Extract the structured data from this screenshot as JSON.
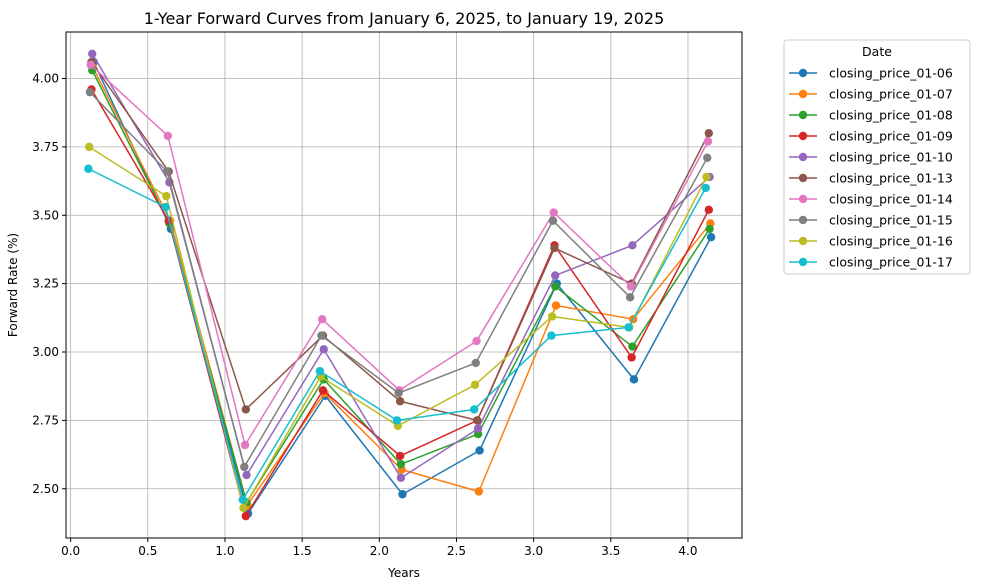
{
  "chart_data": {
    "type": "line",
    "title": "1-Year Forward Curves from January 6, 2025, to January 19, 2025",
    "xlabel": "Years",
    "ylabel": "Forward Rate (%)",
    "xlim": [
      -0.03,
      4.35
    ],
    "ylim": [
      2.32,
      4.17
    ],
    "xticks": [
      0.0,
      0.5,
      1.0,
      1.5,
      2.0,
      2.5,
      3.0,
      3.5,
      4.0
    ],
    "xtick_labels": [
      "0.0",
      "0.5",
      "1.0",
      "1.5",
      "2.0",
      "2.5",
      "3.0",
      "3.5",
      "4.0"
    ],
    "yticks": [
      2.5,
      2.75,
      3.0,
      3.25,
      3.5,
      3.75,
      4.0
    ],
    "ytick_labels": [
      "2.50",
      "2.75",
      "3.00",
      "3.25",
      "3.50",
      "3.75",
      "4.00"
    ],
    "grid": true,
    "legend": {
      "title": "Date",
      "placement": "outside-right"
    },
    "series": [
      {
        "name": "closing_price_01-06",
        "color": "#1f77b4",
        "x": [
          0.15,
          0.65,
          1.15,
          1.65,
          2.15,
          2.65,
          3.15,
          3.65,
          4.15
        ],
        "y": [
          4.06,
          3.45,
          2.41,
          2.84,
          2.48,
          2.64,
          3.25,
          2.9,
          3.42
        ]
      },
      {
        "name": "closing_price_01-07",
        "color": "#ff7f0e",
        "x": [
          0.145,
          0.645,
          1.145,
          1.645,
          2.145,
          2.645,
          3.145,
          3.645,
          4.145
        ],
        "y": [
          4.04,
          3.48,
          2.44,
          2.85,
          2.57,
          2.49,
          3.17,
          3.12,
          3.47
        ]
      },
      {
        "name": "closing_price_01-08",
        "color": "#2ca02c",
        "x": [
          0.14,
          0.64,
          1.14,
          1.64,
          2.14,
          2.64,
          3.14,
          3.64,
          4.14
        ],
        "y": [
          4.03,
          3.47,
          2.45,
          2.9,
          2.59,
          2.7,
          3.24,
          3.02,
          3.45
        ]
      },
      {
        "name": "closing_price_01-09",
        "color": "#d62728",
        "x": [
          0.135,
          0.635,
          1.135,
          1.635,
          2.135,
          2.635,
          3.135,
          3.635,
          4.135
        ],
        "y": [
          3.96,
          3.48,
          2.4,
          2.86,
          2.62,
          2.75,
          3.39,
          2.98,
          3.52
        ]
      },
      {
        "name": "closing_price_01-10",
        "color": "#9467bd",
        "x": [
          0.14,
          0.64,
          1.14,
          1.64,
          2.14,
          2.64,
          3.14,
          3.64,
          4.14
        ],
        "y": [
          4.09,
          3.62,
          2.55,
          3.01,
          2.54,
          2.72,
          3.28,
          3.39,
          3.64
        ]
      },
      {
        "name": "closing_price_01-13",
        "color": "#8c564b",
        "x": [
          0.135,
          0.635,
          1.135,
          1.635,
          2.135,
          2.635,
          3.135,
          3.635,
          4.135
        ],
        "y": [
          4.06,
          3.66,
          2.79,
          3.06,
          2.82,
          2.75,
          3.38,
          3.25,
          3.8
        ]
      },
      {
        "name": "closing_price_01-14",
        "color": "#e377c2",
        "x": [
          0.13,
          0.63,
          1.13,
          1.63,
          2.13,
          2.63,
          3.13,
          3.63,
          4.13
        ],
        "y": [
          4.05,
          3.79,
          2.66,
          3.12,
          2.86,
          3.04,
          3.51,
          3.24,
          3.77
        ]
      },
      {
        "name": "closing_price_01-15",
        "color": "#7f7f7f",
        "x": [
          0.125,
          0.625,
          1.125,
          1.625,
          2.125,
          2.625,
          3.125,
          3.625,
          4.125
        ],
        "y": [
          3.95,
          3.66,
          2.58,
          3.06,
          2.85,
          2.96,
          3.48,
          3.2,
          3.71
        ]
      },
      {
        "name": "closing_price_01-16",
        "color": "#bcbd22",
        "x": [
          0.12,
          0.62,
          1.12,
          1.62,
          2.12,
          2.62,
          3.12,
          3.62,
          4.12
        ],
        "y": [
          3.75,
          3.57,
          2.43,
          2.91,
          2.73,
          2.88,
          3.13,
          3.09,
          3.64
        ]
      },
      {
        "name": "closing_price_01-17",
        "color": "#17becf",
        "x": [
          0.115,
          0.615,
          1.115,
          1.615,
          2.115,
          2.615,
          3.115,
          3.615,
          4.115
        ],
        "y": [
          3.67,
          3.53,
          2.46,
          2.93,
          2.75,
          2.79,
          3.06,
          3.09,
          3.6
        ]
      }
    ]
  }
}
